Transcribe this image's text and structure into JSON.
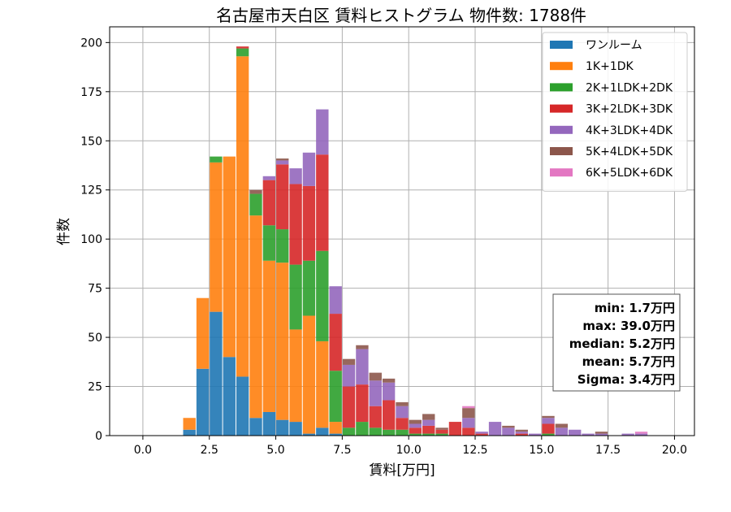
{
  "chart_data": {
    "type": "bar",
    "stacked": true,
    "title": "名古屋市天白区 賃料ヒストグラム 物件数: 1788件",
    "xlabel": "賃料[万円]",
    "ylabel": "件数",
    "xlim": [
      -1.25,
      20.75
    ],
    "ylim": [
      0,
      208
    ],
    "xticks": [
      0.0,
      2.5,
      5.0,
      7.5,
      10.0,
      12.5,
      15.0,
      17.5,
      20.0
    ],
    "xtick_labels": [
      "0.0",
      "2.5",
      "5.0",
      "7.5",
      "10.0",
      "12.5",
      "15.0",
      "17.5",
      "20.0"
    ],
    "yticks": [
      0,
      25,
      50,
      75,
      100,
      125,
      150,
      175,
      200
    ],
    "ytick_labels": [
      "0",
      "25",
      "50",
      "75",
      "100",
      "125",
      "150",
      "175",
      "200"
    ],
    "grid": true,
    "legend_position": "top-right",
    "bin_width": 0.5,
    "bin_starts": [
      1.0,
      1.5,
      2.0,
      2.5,
      3.0,
      3.5,
      4.0,
      4.5,
      5.0,
      5.5,
      6.0,
      6.5,
      7.0,
      7.5,
      8.0,
      8.5,
      9.0,
      9.5,
      10.0,
      10.5,
      11.0,
      11.5,
      12.0,
      12.5,
      13.0,
      13.5,
      14.0,
      14.5,
      15.0,
      15.5,
      16.0,
      16.5,
      17.0,
      17.5,
      18.0,
      18.5
    ],
    "series": [
      {
        "name": "ワンルーム",
        "color": "#1f77b4",
        "values": [
          0,
          3,
          34,
          63,
          40,
          30,
          9,
          12,
          8,
          7,
          1,
          4,
          1,
          0,
          0,
          0,
          0,
          0,
          0,
          0,
          0,
          0,
          0,
          0,
          0,
          0,
          0,
          0,
          0,
          0,
          0,
          0,
          0,
          0,
          0,
          0
        ]
      },
      {
        "name": "1K+1DK",
        "color": "#ff7f0e",
        "values": [
          0,
          6,
          36,
          76,
          102,
          163,
          103,
          77,
          80,
          47,
          60,
          44,
          6,
          0,
          0,
          0,
          0,
          0,
          0,
          0,
          0,
          0,
          0,
          0,
          0,
          0,
          0,
          0,
          0,
          0,
          0,
          0,
          0,
          0,
          0,
          0
        ]
      },
      {
        "name": "2K+1LDK+2DK",
        "color": "#2ca02c",
        "values": [
          0,
          0,
          0,
          3,
          0,
          4,
          11,
          18,
          17,
          33,
          28,
          46,
          26,
          4,
          7,
          4,
          3,
          3,
          1,
          1,
          1,
          0,
          0,
          0,
          0,
          0,
          0,
          0,
          1,
          0,
          0,
          0,
          0,
          0,
          0,
          0
        ]
      },
      {
        "name": "3K+2LDK+3DK",
        "color": "#d62728",
        "values": [
          0,
          0,
          0,
          0,
          0,
          1,
          0,
          23,
          33,
          41,
          38,
          49,
          29,
          21,
          19,
          11,
          15,
          6,
          3,
          4,
          2,
          7,
          4,
          1,
          0,
          0,
          1,
          0,
          5,
          0,
          0,
          0,
          0,
          0,
          0,
          0
        ]
      },
      {
        "name": "4K+3LDK+4DK",
        "color": "#9467bd",
        "values": [
          0,
          0,
          0,
          0,
          0,
          0,
          0,
          2,
          2,
          8,
          17,
          23,
          14,
          11,
          18,
          13,
          9,
          6,
          2,
          3,
          0,
          0,
          5,
          1,
          7,
          4,
          1,
          1,
          3,
          4,
          3,
          1,
          1,
          0,
          1,
          1
        ]
      },
      {
        "name": "5K+4LDK+5DK",
        "color": "#8c564b",
        "values": [
          0,
          0,
          0,
          0,
          0,
          0,
          2,
          0,
          1,
          0,
          0,
          0,
          0,
          3,
          2,
          4,
          2,
          2,
          2,
          3,
          1,
          0,
          5,
          0,
          0,
          1,
          1,
          0,
          1,
          2,
          0,
          0,
          1,
          0,
          0,
          0
        ]
      },
      {
        "name": "6K+5LDK+6DK",
        "color": "#e377c2",
        "values": [
          0,
          0,
          0,
          0,
          0,
          0,
          0,
          0,
          0,
          0,
          0,
          0,
          0,
          0,
          0,
          0,
          0,
          0,
          0,
          0,
          0,
          0,
          1,
          0,
          0,
          0,
          0,
          0,
          0,
          0,
          0,
          0,
          0,
          0,
          0,
          1
        ]
      }
    ],
    "stats_box": {
      "lines": [
        "min: 1.7万円",
        "max: 39.0万円",
        "median: 5.2万円",
        "mean: 5.7万円",
        "Sigma: 3.4万円"
      ]
    }
  }
}
